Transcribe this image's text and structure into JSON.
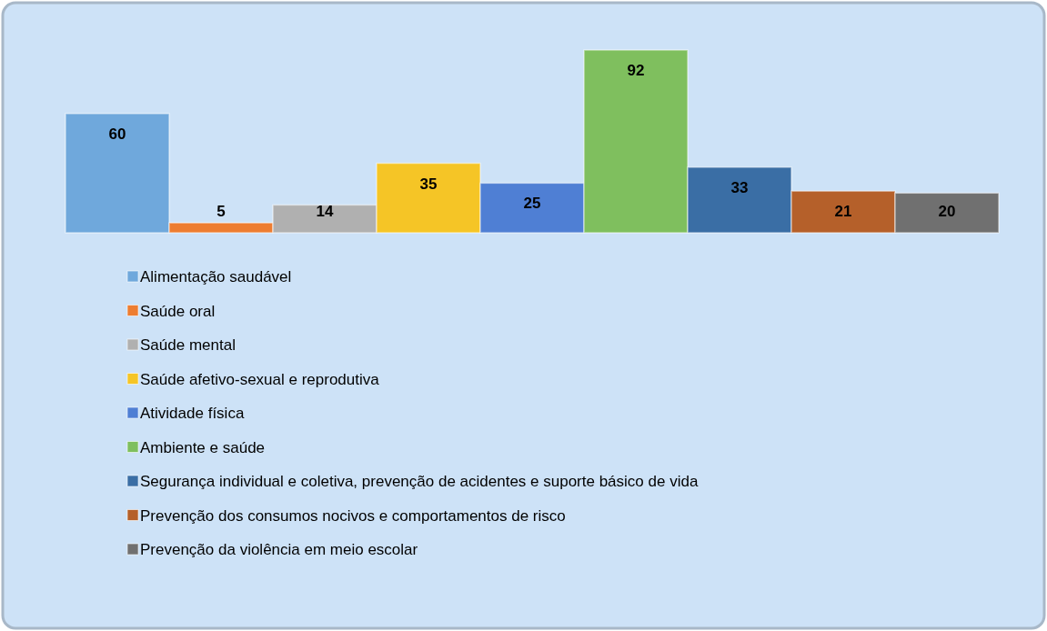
{
  "chart_data": {
    "type": "bar",
    "categories": [
      null
    ],
    "data_labels": true,
    "legend": "bottom",
    "grid": false,
    "series": [
      {
        "name": "Alimentação saudável",
        "color": "#6fa8dc",
        "values": [
          60
        ]
      },
      {
        "name": "Saúde oral",
        "color": "#ed7d31",
        "values": [
          5
        ]
      },
      {
        "name": "Saúde mental",
        "color": "#b0b0b0",
        "values": [
          14
        ]
      },
      {
        "name": "Saúde afetivo-sexual e reprodutiva",
        "color": "#f5c526",
        "values": [
          35
        ]
      },
      {
        "name": "Atividade física",
        "color": "#4f7fd4",
        "values": [
          25
        ]
      },
      {
        "name": "Ambiente e saúde",
        "color": "#7fbf5e",
        "values": [
          92
        ]
      },
      {
        "name": "Segurança individual e coletiva, prevenção de acidentes e suporte básico de vida",
        "color": "#3a6ea5",
        "values": [
          33
        ]
      },
      {
        "name": "Prevenção dos consumos nocivos e comportamentos de risco",
        "color": "#b5602a",
        "values": [
          21
        ]
      },
      {
        "name": "Prevenção da violência em meio escolar",
        "color": "#707070",
        "values": [
          20
        ]
      }
    ]
  }
}
